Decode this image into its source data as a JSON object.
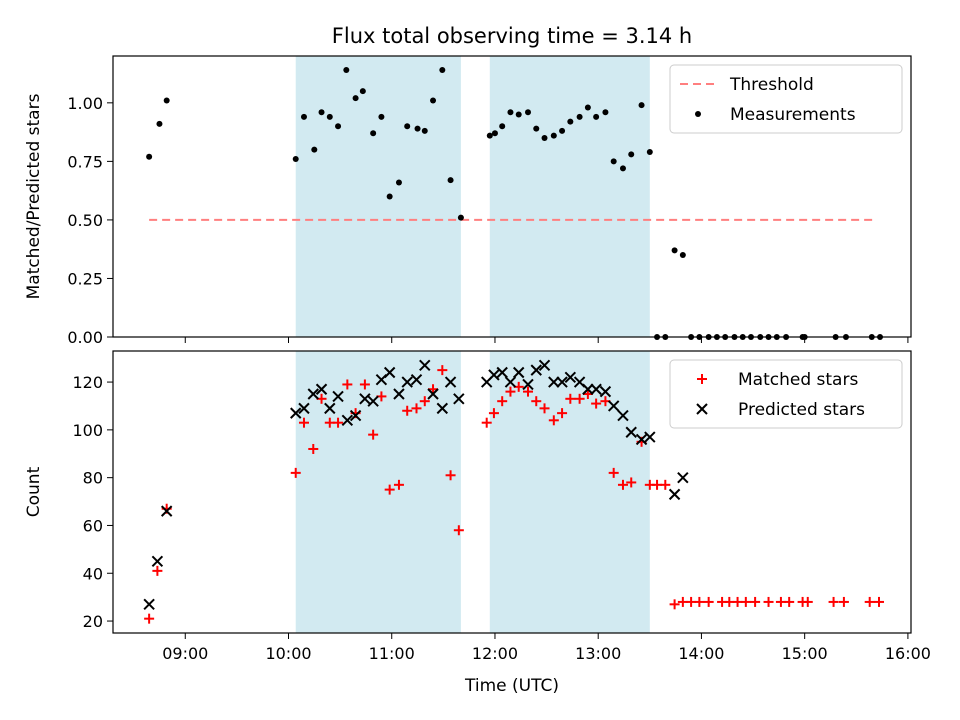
{
  "figure": {
    "title": "Flux total observing time = 3.14 h",
    "xlabel": "Time (UTC)"
  },
  "chart_data": [
    {
      "type": "scatter",
      "panel": "top",
      "ylabel": "Matched/Predicted stars",
      "xlim": [
        8.3,
        16.03
      ],
      "ylim": [
        0,
        1.2
      ],
      "yticks": [
        0.0,
        0.25,
        0.5,
        0.75,
        1.0
      ],
      "ytick_labels": [
        "0.00",
        "0.25",
        "0.50",
        "0.75",
        "1.00"
      ],
      "legend": {
        "position": "top-right",
        "threshold_label": "Threshold",
        "measurements_label": "Measurements"
      },
      "threshold": {
        "y": 0.5,
        "x_range": [
          8.65,
          15.7
        ],
        "color": "#ff7f7f",
        "style": "dashed"
      },
      "shaded_ranges": [
        [
          10.07,
          11.67
        ],
        [
          11.95,
          13.5
        ]
      ],
      "shade_color": "#add8e6",
      "measurements": {
        "color": "#000000",
        "points": [
          [
            8.65,
            0.77
          ],
          [
            8.75,
            0.91
          ],
          [
            8.82,
            1.01
          ],
          [
            10.07,
            0.76
          ],
          [
            10.15,
            0.94
          ],
          [
            10.25,
            0.8
          ],
          [
            10.32,
            0.96
          ],
          [
            10.4,
            0.94
          ],
          [
            10.48,
            0.9
          ],
          [
            10.56,
            1.14
          ],
          [
            10.65,
            1.02
          ],
          [
            10.72,
            1.05
          ],
          [
            10.82,
            0.87
          ],
          [
            10.9,
            0.94
          ],
          [
            10.98,
            0.6
          ],
          [
            11.07,
            0.66
          ],
          [
            11.15,
            0.9
          ],
          [
            11.25,
            0.89
          ],
          [
            11.32,
            0.88
          ],
          [
            11.4,
            1.01
          ],
          [
            11.49,
            1.14
          ],
          [
            11.57,
            0.67
          ],
          [
            11.67,
            0.51
          ],
          [
            11.95,
            0.86
          ],
          [
            12.0,
            0.87
          ],
          [
            12.07,
            0.9
          ],
          [
            12.15,
            0.96
          ],
          [
            12.23,
            0.95
          ],
          [
            12.32,
            0.96
          ],
          [
            12.4,
            0.89
          ],
          [
            12.48,
            0.85
          ],
          [
            12.57,
            0.86
          ],
          [
            12.65,
            0.88
          ],
          [
            12.73,
            0.92
          ],
          [
            12.82,
            0.94
          ],
          [
            12.9,
            0.98
          ],
          [
            12.98,
            0.94
          ],
          [
            13.07,
            0.96
          ],
          [
            13.15,
            0.75
          ],
          [
            13.24,
            0.72
          ],
          [
            13.32,
            0.78
          ],
          [
            13.42,
            0.99
          ],
          [
            13.5,
            0.79
          ],
          [
            13.57,
            0.0
          ],
          [
            13.65,
            0.0
          ],
          [
            13.74,
            0.37
          ],
          [
            13.82,
            0.35
          ],
          [
            13.9,
            0.0
          ],
          [
            13.98,
            0.0
          ],
          [
            14.07,
            0.0
          ],
          [
            14.15,
            0.0
          ],
          [
            14.23,
            0.0
          ],
          [
            14.32,
            0.0
          ],
          [
            14.4,
            0.0
          ],
          [
            14.48,
            0.0
          ],
          [
            14.57,
            0.0
          ],
          [
            14.65,
            0.0
          ],
          [
            14.73,
            0.0
          ],
          [
            14.82,
            0.0
          ],
          [
            14.98,
            0.0
          ],
          [
            15.0,
            0.0
          ],
          [
            15.3,
            0.0
          ],
          [
            15.4,
            0.0
          ],
          [
            15.65,
            0.0
          ],
          [
            15.73,
            0.0
          ]
        ]
      }
    },
    {
      "type": "scatter",
      "panel": "bottom",
      "ylabel": "Count",
      "xlim": [
        8.3,
        16.03
      ],
      "ylim": [
        15,
        133
      ],
      "yticks": [
        20,
        40,
        60,
        80,
        100,
        120
      ],
      "xticks": [
        9,
        10,
        11,
        12,
        13,
        14,
        15,
        16
      ],
      "xtick_labels": [
        "09:00",
        "10:00",
        "11:00",
        "12:00",
        "13:00",
        "14:00",
        "15:00",
        "16:00"
      ],
      "legend": {
        "position": "top-right",
        "matched_label": "Matched stars",
        "predicted_label": "Predicted stars"
      },
      "shaded_ranges": [
        [
          10.07,
          11.67
        ],
        [
          11.95,
          13.5
        ]
      ],
      "shade_color": "#add8e6",
      "matched": {
        "color": "#ff0000",
        "marker": "plus",
        "points": [
          [
            8.65,
            21
          ],
          [
            8.73,
            41
          ],
          [
            8.82,
            67
          ],
          [
            10.07,
            82
          ],
          [
            10.15,
            103
          ],
          [
            10.24,
            92
          ],
          [
            10.32,
            113
          ],
          [
            10.4,
            103
          ],
          [
            10.48,
            103
          ],
          [
            10.57,
            119
          ],
          [
            10.65,
            107
          ],
          [
            10.74,
            119
          ],
          [
            10.82,
            98
          ],
          [
            10.9,
            114
          ],
          [
            10.98,
            75
          ],
          [
            11.07,
            77
          ],
          [
            11.15,
            108
          ],
          [
            11.24,
            109
          ],
          [
            11.32,
            112
          ],
          [
            11.4,
            117
          ],
          [
            11.49,
            125
          ],
          [
            11.57,
            81
          ],
          [
            11.65,
            58
          ],
          [
            11.92,
            103
          ],
          [
            11.99,
            107
          ],
          [
            12.07,
            112
          ],
          [
            12.15,
            116
          ],
          [
            12.23,
            118
          ],
          [
            12.32,
            116
          ],
          [
            12.4,
            112
          ],
          [
            12.48,
            109
          ],
          [
            12.57,
            104
          ],
          [
            12.65,
            107
          ],
          [
            12.73,
            113
          ],
          [
            12.82,
            113
          ],
          [
            12.9,
            115
          ],
          [
            12.98,
            111
          ],
          [
            13.07,
            112
          ],
          [
            13.15,
            82
          ],
          [
            13.24,
            77
          ],
          [
            13.32,
            78
          ],
          [
            13.42,
            95
          ],
          [
            13.5,
            77
          ],
          [
            13.57,
            77
          ],
          [
            13.65,
            77
          ],
          [
            13.74,
            27
          ],
          [
            13.82,
            28
          ],
          [
            13.9,
            28
          ],
          [
            13.98,
            28
          ],
          [
            14.07,
            28
          ],
          [
            14.2,
            28
          ],
          [
            14.27,
            28
          ],
          [
            14.35,
            28
          ],
          [
            14.43,
            28
          ],
          [
            14.52,
            28
          ],
          [
            14.65,
            28
          ],
          [
            14.77,
            28
          ],
          [
            14.85,
            28
          ],
          [
            14.98,
            28
          ],
          [
            15.03,
            28
          ],
          [
            15.28,
            28
          ],
          [
            15.38,
            28
          ],
          [
            15.63,
            28
          ],
          [
            15.72,
            28
          ]
        ]
      },
      "predicted": {
        "color": "#000000",
        "marker": "x",
        "points": [
          [
            8.65,
            27
          ],
          [
            8.73,
            45
          ],
          [
            8.82,
            66
          ],
          [
            10.07,
            107
          ],
          [
            10.15,
            109
          ],
          [
            10.24,
            115
          ],
          [
            10.32,
            117
          ],
          [
            10.4,
            109
          ],
          [
            10.48,
            114
          ],
          [
            10.57,
            104
          ],
          [
            10.65,
            106
          ],
          [
            10.74,
            113
          ],
          [
            10.82,
            112
          ],
          [
            10.9,
            121
          ],
          [
            10.98,
            124
          ],
          [
            11.07,
            115
          ],
          [
            11.15,
            120
          ],
          [
            11.24,
            121
          ],
          [
            11.32,
            127
          ],
          [
            11.4,
            115
          ],
          [
            11.49,
            109
          ],
          [
            11.57,
            120
          ],
          [
            11.65,
            113
          ],
          [
            11.92,
            120
          ],
          [
            11.99,
            123
          ],
          [
            12.07,
            124
          ],
          [
            12.15,
            120
          ],
          [
            12.23,
            124
          ],
          [
            12.32,
            119
          ],
          [
            12.4,
            125
          ],
          [
            12.48,
            127
          ],
          [
            12.57,
            120
          ],
          [
            12.65,
            120
          ],
          [
            12.73,
            122
          ],
          [
            12.82,
            120
          ],
          [
            12.9,
            117
          ],
          [
            12.98,
            117
          ],
          [
            13.07,
            116
          ],
          [
            13.15,
            110
          ],
          [
            13.24,
            106
          ],
          [
            13.32,
            99
          ],
          [
            13.42,
            96
          ],
          [
            13.5,
            97
          ],
          [
            13.74,
            73
          ],
          [
            13.82,
            80
          ]
        ]
      }
    }
  ]
}
